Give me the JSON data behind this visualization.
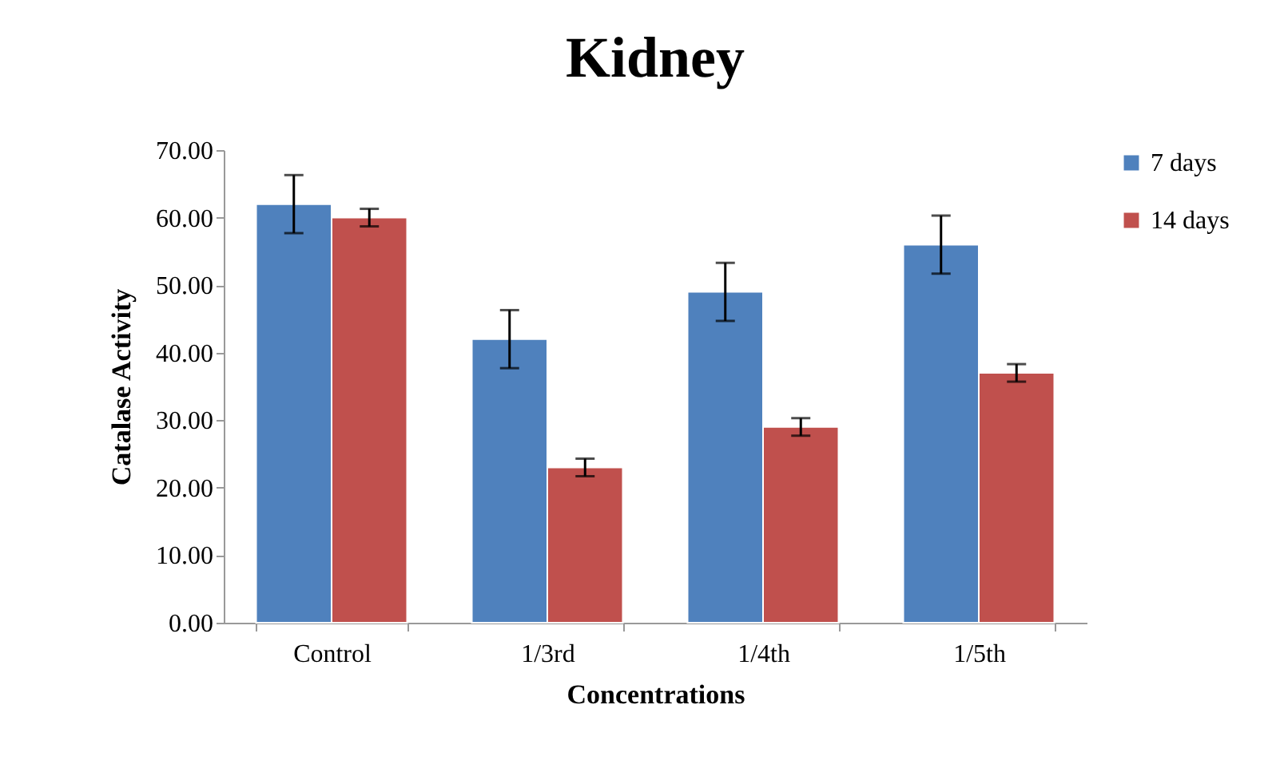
{
  "chart_data": {
    "type": "bar",
    "title": "Kidney",
    "xlabel": "Concentrations",
    "ylabel": "Catalase Activity",
    "categories": [
      "Control",
      "1/3rd",
      "1/4th",
      "1/5th"
    ],
    "series": [
      {
        "name": "7 days",
        "color": "#4f81bd",
        "values": [
          62,
          42,
          49,
          56
        ],
        "errors": [
          4.3,
          4.3,
          4.3,
          4.3
        ]
      },
      {
        "name": "14 days",
        "color": "#c0504d",
        "values": [
          60,
          23,
          29,
          37
        ],
        "errors": [
          1.3,
          1.3,
          1.3,
          1.3
        ]
      }
    ],
    "ylim": [
      0,
      70
    ],
    "yticks": [
      {
        "value": 0,
        "label": "0.00"
      },
      {
        "value": 10,
        "label": "10.00"
      },
      {
        "value": 20,
        "label": "20.00"
      },
      {
        "value": 30,
        "label": "30.00"
      },
      {
        "value": 40,
        "label": "40.00"
      },
      {
        "value": 50,
        "label": "50.00"
      },
      {
        "value": 60,
        "label": "60.00"
      },
      {
        "value": 70,
        "label": "70.00"
      }
    ],
    "grid": false,
    "legend": "right"
  }
}
